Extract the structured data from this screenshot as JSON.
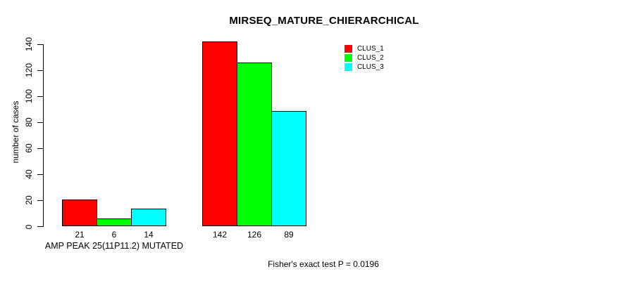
{
  "chart_data": {
    "type": "bar",
    "title": "MIRSEQ_MATURE_CHIERARCHICAL",
    "ylabel": "number of cases",
    "xlabel": "",
    "categories": [
      "AMP PEAK 25(11P11.2) MUTATED",
      ""
    ],
    "series": [
      {
        "name": "CLUS_1",
        "color": "#ff0000",
        "values": [
          21,
          142
        ]
      },
      {
        "name": "CLUS_2",
        "color": "#00ff00",
        "values": [
          6,
          126
        ]
      },
      {
        "name": "CLUS_3",
        "color": "#00ffff",
        "values": [
          14,
          89
        ]
      }
    ],
    "bar_value_labels": [
      [
        21,
        6,
        14
      ],
      [
        142,
        126,
        89
      ]
    ],
    "yticks": [
      0,
      20,
      40,
      60,
      80,
      100,
      120,
      140
    ],
    "ylim": [
      0,
      140
    ],
    "grid": false,
    "legend": {
      "position": "top-right",
      "entries": [
        "CLUS_1",
        "CLUS_2",
        "CLUS_3"
      ]
    },
    "annotation": "Fisher's exact test P = 0.0196",
    "colors": {
      "background": "#ffffff",
      "axis": "#000000",
      "bar_border": "#000000"
    }
  }
}
